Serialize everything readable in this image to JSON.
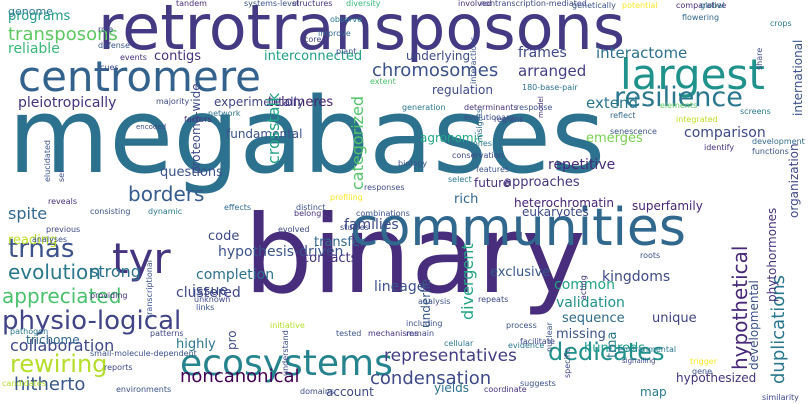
{
  "words": [
    {
      "text": "megabases",
      "color": "#2c718e"
    },
    {
      "text": "binary",
      "color": "#472d7b"
    },
    {
      "text": "retrotransposons",
      "color": "#443a83"
    },
    {
      "text": "communities",
      "color": "#31688e"
    },
    {
      "text": "centromere",
      "color": "#33638d"
    },
    {
      "text": "largest",
      "color": "#20928c"
    },
    {
      "text": "ecosystems",
      "color": "#25848e"
    },
    {
      "text": "tyr",
      "color": "#453581"
    },
    {
      "text": "resilience",
      "color": "#2a788e"
    },
    {
      "text": "chromosomes",
      "color": "#3b528b"
    },
    {
      "text": "interactome",
      "color": "#2c718e"
    },
    {
      "text": "arranged",
      "color": "#433e85"
    },
    {
      "text": "extend",
      "color": "#2a768e"
    },
    {
      "text": "comparison",
      "color": "#3e4989"
    },
    {
      "text": "frames",
      "color": "#3f4889"
    },
    {
      "text": "pleiotropically",
      "color": "#46327e"
    },
    {
      "text": "telomeres",
      "color": "#482173"
    },
    {
      "text": "borders",
      "color": "#365c8d"
    },
    {
      "text": "trnas",
      "color": "#3b528b"
    },
    {
      "text": "spite",
      "color": "#31688e"
    },
    {
      "text": "appreciated",
      "color": "#4ac16d"
    },
    {
      "text": "evolution",
      "color": "#2a788e"
    },
    {
      "text": "strong",
      "color": "#2c728e"
    },
    {
      "text": "physio-logical",
      "color": "#414487"
    },
    {
      "text": "collaboration",
      "color": "#3f4889"
    },
    {
      "text": "rewiring",
      "color": "#b5de2b"
    },
    {
      "text": "hitherto",
      "color": "#38588c"
    },
    {
      "text": "noncanonical",
      "color": "#440154"
    },
    {
      "text": "condensation",
      "color": "#3e4a89"
    },
    {
      "text": "dedicates",
      "color": "#21918c"
    },
    {
      "text": "representatives",
      "color": "#433d84"
    },
    {
      "text": "repetitive",
      "color": "#472c7a"
    },
    {
      "text": "heterochromatin",
      "color": "#482475"
    },
    {
      "text": "superfamily",
      "color": "#482576"
    },
    {
      "text": "hypothetical",
      "color": "#482979"
    },
    {
      "text": "duplications",
      "color": "#2a788e"
    },
    {
      "text": "crosstalk",
      "color": "#21a685"
    },
    {
      "text": "categorized",
      "color": "#52c569"
    },
    {
      "text": "transposons",
      "color": "#5ec962"
    },
    {
      "text": "reliable",
      "color": "#38b977"
    },
    {
      "text": "programs",
      "color": "#1f9e89"
    },
    {
      "text": "contigs",
      "color": "#46307e"
    },
    {
      "text": "interconnected",
      "color": "#1fa187"
    },
    {
      "text": "clustered",
      "color": "#3f4788"
    },
    {
      "text": "agronomic",
      "color": "#22a785"
    },
    {
      "text": "questions",
      "color": "#3b518b"
    },
    {
      "text": "approaches",
      "color": "#46337f"
    },
    {
      "text": "future",
      "color": "#472d7b"
    },
    {
      "text": "rich",
      "color": "#31688e"
    },
    {
      "text": "emerges",
      "color": "#7ad151"
    },
    {
      "text": "lineage",
      "color": "#3b528b"
    },
    {
      "text": "exclusive",
      "color": "#38588c"
    },
    {
      "text": "common",
      "color": "#20a486"
    },
    {
      "text": "validation",
      "color": "#21908d"
    },
    {
      "text": "sequence",
      "color": "#2f6b8e"
    },
    {
      "text": "missing",
      "color": "#3b528b"
    },
    {
      "text": "kingdoms",
      "color": "#3e4a89"
    },
    {
      "text": "divergent",
      "color": "#21a685"
    },
    {
      "text": "hundreds",
      "color": "#1f9a8a"
    },
    {
      "text": "unique",
      "color": "#414487"
    },
    {
      "text": "hypothesized",
      "color": "#46337f"
    },
    {
      "text": "map",
      "color": "#287c8e"
    },
    {
      "text": "account",
      "color": "#3e4a89"
    },
    {
      "text": "yields",
      "color": "#2c728e"
    },
    {
      "text": "families",
      "color": "#3e4989"
    },
    {
      "text": "code",
      "color": "#3e4989"
    },
    {
      "text": "hypothesis-driven",
      "color": "#3b528b"
    },
    {
      "text": "transfer",
      "color": "#31688e"
    },
    {
      "text": "contacts",
      "color": "#46327e"
    },
    {
      "text": "completion",
      "color": "#2c718e"
    },
    {
      "text": "issue",
      "color": "#3e4989"
    },
    {
      "text": "reading",
      "color": "#bddf26"
    },
    {
      "text": "highly",
      "color": "#2a788e"
    },
    {
      "text": "pro",
      "color": "#3e4989"
    },
    {
      "text": "underlie",
      "color": "#38588c"
    },
    {
      "text": "trichome",
      "color": "#31688e"
    },
    {
      "text": "trna",
      "color": "#2a768e"
    },
    {
      "text": "organization",
      "color": "#3f4788"
    },
    {
      "text": "developmental",
      "color": "#3b528b"
    },
    {
      "text": "fundamental",
      "color": "#3b528b"
    },
    {
      "text": "phytohormones",
      "color": "#46327e"
    },
    {
      "text": "proteome-wide",
      "color": "#3e4a89"
    },
    {
      "text": "experimentally",
      "color": "#414487"
    },
    {
      "text": "genome",
      "color": "#2a788e"
    },
    {
      "text": "tandem",
      "color": "#472d7b"
    },
    {
      "text": "systems-level",
      "color": "#3b528b"
    },
    {
      "text": "structures",
      "color": "#46327e"
    },
    {
      "text": "diversity",
      "color": "#35b779"
    },
    {
      "text": "nontranscription-mediated",
      "color": "#3e4989"
    },
    {
      "text": "genetically",
      "color": "#3b528b"
    },
    {
      "text": "potential",
      "color": "#fde725"
    },
    {
      "text": "comparative",
      "color": "#482878"
    },
    {
      "text": "global",
      "color": "#2a788e"
    },
    {
      "text": "flowering",
      "color": "#31688e"
    },
    {
      "text": "role",
      "color": "#3e4989"
    },
    {
      "text": "defense",
      "color": "#3b528b"
    },
    {
      "text": "events",
      "color": "#46337f"
    },
    {
      "text": "cues",
      "color": "#3e4989"
    },
    {
      "text": "improve",
      "color": "#31688e"
    },
    {
      "text": "observe",
      "color": "#2a788e"
    },
    {
      "text": "core",
      "color": "#414487"
    },
    {
      "text": "plant",
      "color": "#3b528b"
    },
    {
      "text": "underlying",
      "color": "#3e4a89"
    },
    {
      "text": "international",
      "color": "#3b528b"
    },
    {
      "text": "crops",
      "color": "#2a788e"
    },
    {
      "text": "share",
      "color": "#3e4989"
    },
    {
      "text": "extent",
      "color": "#4ac16d"
    },
    {
      "text": "180-base-pair",
      "color": "#2c728e"
    },
    {
      "text": "response",
      "color": "#3b528b"
    },
    {
      "text": "determinants",
      "color": "#46327e"
    },
    {
      "text": "generation",
      "color": "#2a788e"
    },
    {
      "text": "regulation",
      "color": "#3e4989"
    },
    {
      "text": "evolutionary",
      "color": "#3b528b"
    },
    {
      "text": "reflect",
      "color": "#31688e"
    },
    {
      "text": "elements",
      "color": "#5ec962"
    },
    {
      "text": "integrated",
      "color": "#bddf26"
    },
    {
      "text": "screens",
      "color": "#2a788e"
    },
    {
      "text": "majority",
      "color": "#3e4989"
    },
    {
      "text": "interactions",
      "color": "#3b528b"
    },
    {
      "text": "factors",
      "color": "#46327e"
    },
    {
      "text": "network",
      "color": "#2c728e"
    },
    {
      "text": "encoded",
      "color": "#3e4989"
    },
    {
      "text": "senescence",
      "color": "#3b528b"
    },
    {
      "text": "development",
      "color": "#31688e"
    },
    {
      "text": "identify",
      "color": "#46327e"
    },
    {
      "text": "functions",
      "color": "#3b528b"
    },
    {
      "text": "conservation",
      "color": "#3e4989"
    },
    {
      "text": "hormones",
      "color": "#2a788e"
    },
    {
      "text": "biology",
      "color": "#3b528b"
    },
    {
      "text": "model",
      "color": "#46327e"
    },
    {
      "text": "regions",
      "color": "#3e4989"
    },
    {
      "text": "insights",
      "color": "#31688e"
    },
    {
      "text": "features",
      "color": "#3b528b"
    },
    {
      "text": "select",
      "color": "#2a788e"
    },
    {
      "text": "responses",
      "color": "#3e4989"
    },
    {
      "text": "profiling",
      "color": "#fde725"
    },
    {
      "text": "distinct",
      "color": "#3b528b"
    },
    {
      "text": "belong",
      "color": "#46327e"
    },
    {
      "text": "studies",
      "color": "#3e4989"
    },
    {
      "text": "combinations",
      "color": "#3b528b"
    },
    {
      "text": "effects",
      "color": "#31688e"
    },
    {
      "text": "evolved",
      "color": "#3e4989"
    },
    {
      "text": "dynamic",
      "color": "#2a788e"
    },
    {
      "text": "consisting",
      "color": "#3b528b"
    },
    {
      "text": "reveals",
      "color": "#46327e"
    },
    {
      "text": "previous",
      "color": "#3e4989"
    },
    {
      "text": "analyses",
      "color": "#3b528b"
    },
    {
      "text": "candidates",
      "color": "#b5de2b"
    },
    {
      "text": "reports",
      "color": "#3e4989"
    },
    {
      "text": "environments",
      "color": "#3b528b"
    },
    {
      "text": "pathogen",
      "color": "#2a788e"
    },
    {
      "text": "patterns",
      "color": "#3e4989"
    },
    {
      "text": "small-molecule-dependent",
      "color": "#3b528b"
    },
    {
      "text": "providing",
      "color": "#46327e"
    },
    {
      "text": "unknown",
      "color": "#3e4989"
    },
    {
      "text": "links",
      "color": "#3b528b"
    },
    {
      "text": "initiative",
      "color": "#b5de2b"
    },
    {
      "text": "understand",
      "color": "#3e4989"
    },
    {
      "text": "tested",
      "color": "#3b528b"
    },
    {
      "text": "mechanisms",
      "color": "#46327e"
    },
    {
      "text": "remain",
      "color": "#3e4989"
    },
    {
      "text": "including",
      "color": "#3b528b"
    },
    {
      "text": "cellular",
      "color": "#2a788e"
    },
    {
      "text": "specific",
      "color": "#3e4989"
    },
    {
      "text": "transcriptional",
      "color": "#3b528b"
    },
    {
      "text": "domains",
      "color": "#3e4989"
    },
    {
      "text": "coordinate",
      "color": "#46327e"
    },
    {
      "text": "suggests",
      "color": "#3b528b"
    },
    {
      "text": "repeats",
      "color": "#3e4989"
    },
    {
      "text": "process",
      "color": "#3b528b"
    },
    {
      "text": "evidence",
      "color": "#2a788e"
    },
    {
      "text": "facilitate",
      "color": "#3e4989"
    },
    {
      "text": "nuclear",
      "color": "#3b528b"
    },
    {
      "text": "acting",
      "color": "#46327e"
    },
    {
      "text": "environmental",
      "color": "#2a788e"
    },
    {
      "text": "signalling",
      "color": "#3e4989"
    },
    {
      "text": "trigger",
      "color": "#fde725"
    },
    {
      "text": "gene",
      "color": "#3b528b"
    },
    {
      "text": "similarity",
      "color": "#3e4989"
    },
    {
      "text": "analysis",
      "color": "#3b528b"
    },
    {
      "text": "involved",
      "color": "#46327e"
    },
    {
      "text": "eukaryotes",
      "color": "#3e4989"
    },
    {
      "text": "elucidated",
      "color": "#3b528b"
    },
    {
      "text": "ser",
      "color": "#3e4989"
    },
    {
      "text": "roots",
      "color": "#3b528b"
    },
    {
      "text": "pathways",
      "color": "#2a788e"
    },
    {
      "text": "stress",
      "color": "#3e4989"
    },
    {
      "text": "complex",
      "color": "#3b528b"
    }
  ]
}
